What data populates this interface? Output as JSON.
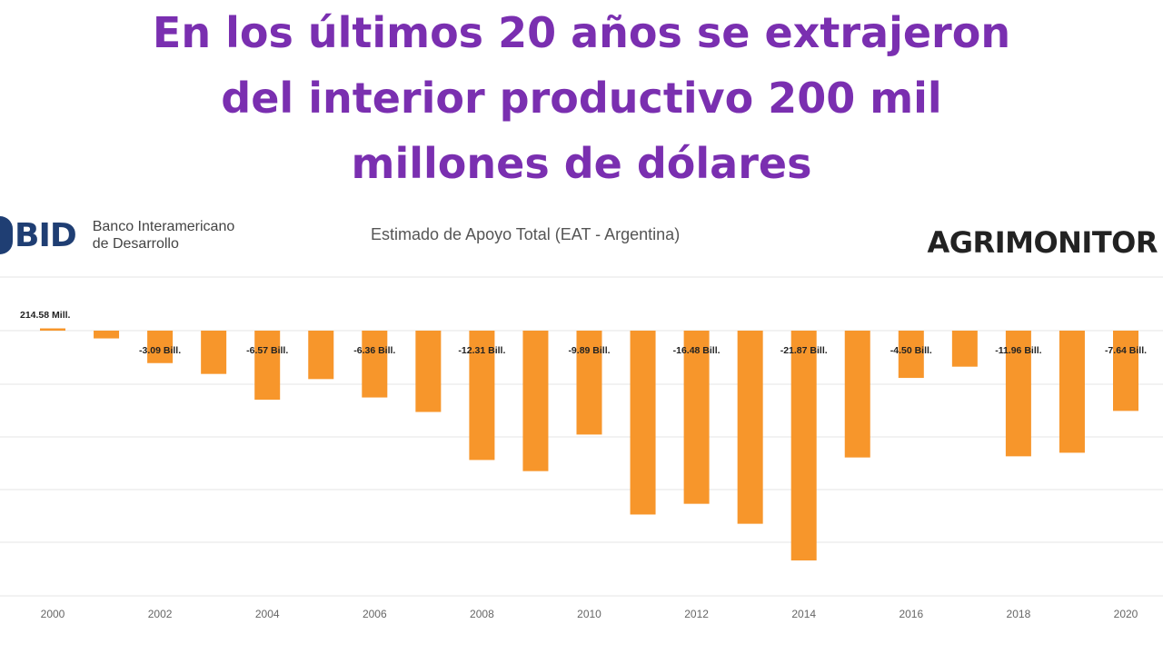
{
  "headline": {
    "line1": "En los últimos 20 años se extrajeron",
    "line2": "del interior productivo 200 mil",
    "line3": "millones de dólares"
  },
  "logo_left": {
    "mark": "BID",
    "bank_line1": "Banco Interamericano",
    "bank_line2": "de Desarrollo"
  },
  "logo_right": {
    "text": "AGRIMONITOR"
  },
  "colors": {
    "headline": "#7a2fb0",
    "bar": "#f7962b",
    "grid": "#e6e6e6"
  },
  "chart_data": {
    "type": "bar",
    "title": "Estimado de Apoyo Total (EAT - Argentina)",
    "unit": "billones USD",
    "categories": [
      "2000",
      "2001",
      "2002",
      "2003",
      "2004",
      "2005",
      "2006",
      "2007",
      "2008",
      "2009",
      "2010",
      "2011",
      "2012",
      "2013",
      "2014",
      "2015",
      "2016",
      "2017",
      "2018",
      "2019",
      "2020"
    ],
    "values": [
      0.21458,
      -0.74,
      -3.09,
      -4.12,
      -6.57,
      -4.61,
      -6.36,
      -7.74,
      -12.31,
      -13.37,
      -9.89,
      -17.5,
      -16.48,
      -18.38,
      -21.87,
      -12.07,
      -4.5,
      -3.43,
      -11.96,
      -11.62,
      -7.64
    ],
    "data_labels": {
      "0": "214.58 Mill.",
      "2": "-3.09 Bill.",
      "4": "-6.57 Bill.",
      "6": "-6.36 Bill.",
      "8": "-12.31 Bill.",
      "10": "-9.89 Bill.",
      "12": "-16.48 Bill.",
      "14": "-21.87 Bill.",
      "16": "-4.50 Bill.",
      "18": "-11.96 Bill.",
      "20": "-7.64 Bill."
    },
    "x_ticks": [
      "2000",
      "2002",
      "2004",
      "2006",
      "2008",
      "2010",
      "2012",
      "2014",
      "2016",
      "2018",
      "2020"
    ],
    "ylim": [
      -25,
      5
    ],
    "grid": true,
    "legend": "none"
  }
}
